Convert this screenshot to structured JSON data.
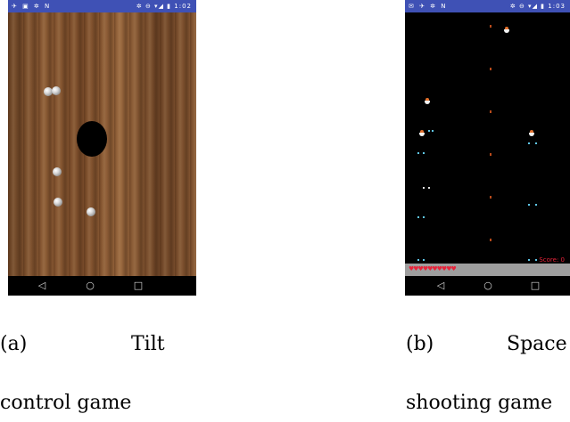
{
  "figure_a": {
    "status_bar": {
      "left_icons": "✈ ▣ ✲ N",
      "right_icons": "✲ ⊖ ▾◢ ▮",
      "time": "1:02"
    },
    "nav": {
      "back": "◁",
      "home": "○",
      "recents": "□"
    },
    "caption": {
      "label": "(a)",
      "word": "Tilt",
      "line2": "control game"
    }
  },
  "figure_b": {
    "status_bar": {
      "left_icons": "✉ ✈ ✲ N",
      "right_icons": "✲ ⊖ ▾◢ ▮",
      "time": "1:03"
    },
    "hud": {
      "lives": "♥♥♥♥♥♥♥♥♥♥",
      "score": "Score: 0"
    },
    "nav": {
      "back": "◁",
      "home": "○",
      "recents": "□"
    },
    "caption": {
      "label": "(b)",
      "word": "Space",
      "line2": "shooting game"
    }
  },
  "colors": {
    "status_bar": "#3f51b5",
    "wood_dark": "#6b4426",
    "wood_light": "#96653c",
    "hearts_score": "#e8233a",
    "ground": "#9e9e9e",
    "enemy_head": "#e3702b",
    "star_cyan": "#5fc7e8"
  },
  "icons": [
    "android-back-icon",
    "android-home-icon",
    "android-recents-icon",
    "heart-icon",
    "enemy-ship-icon",
    "player-ship-icon"
  ]
}
